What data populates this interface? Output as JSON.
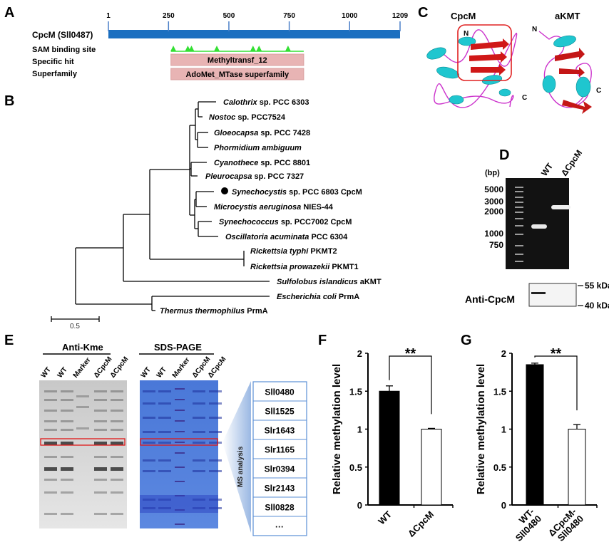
{
  "panel_labels": [
    "A",
    "B",
    "C",
    "D",
    "E",
    "F",
    "G"
  ],
  "panel_a": {
    "protein_label": "CpcM (Sll0487)",
    "ruler_ticks": [
      1,
      250,
      500,
      750,
      1000,
      1209
    ],
    "length": 1209,
    "rows": [
      "SAM binding site",
      "Specific hit",
      "Superfamily"
    ],
    "specific_hit": "Methyltransf_12",
    "superfamily": "AdoMet_MTase superfamily",
    "domain_range": [
      260,
      810
    ],
    "sam_sites": [
      270,
      330,
      345,
      450,
      600,
      625,
      745
    ],
    "colors": {
      "bar": "#1b6fc0",
      "domain": "#e8b4b4",
      "sam": "#33e033"
    }
  },
  "panel_b": {
    "leaves": [
      {
        "italic": "Calothrix",
        "rest": " sp. PCC 6303"
      },
      {
        "italic": "Nostoc",
        "rest": " sp. PCC7524"
      },
      {
        "italic": "Gloeocapsa",
        "rest": " sp. PCC 7428"
      },
      {
        "italic": "Phormidium ambiguum",
        "rest": ""
      },
      {
        "italic": "Cyanothece",
        "rest": " sp. PCC 8801"
      },
      {
        "italic": "Pleurocapsa",
        "rest": " sp. PCC 7327"
      },
      {
        "italic": "Synechocystis",
        "rest": " sp. PCC 6803 CpcM",
        "highlight": true
      },
      {
        "italic": "Microcystis aeruginosa",
        "rest": " NIES-44"
      },
      {
        "italic": "Synechococcus",
        "rest": " sp. PCC7002 CpcM"
      },
      {
        "italic": "Oscillatoria acuminata",
        "rest": " PCC 6304"
      },
      {
        "italic": "Rickettsia typhi",
        "rest": " PKMT2"
      },
      {
        "italic": "Rickettsia prowazekii",
        "rest": " PKMT1"
      },
      {
        "italic": "Sulfolobus islandicus",
        "rest": " aKMT"
      },
      {
        "italic": "Escherichia coli",
        "rest": " PrmA"
      },
      {
        "italic": "Thermus thermophilus",
        "rest": " PrmA"
      }
    ],
    "scale_label": "0.5"
  },
  "panel_c": {
    "titles": [
      "CpcM",
      "aKMT"
    ],
    "n_label": "N",
    "c_label": "C"
  },
  "panel_d": {
    "unit_label": "(bp)",
    "ladder": [
      "5000",
      "3000",
      "2000",
      "1000",
      "750"
    ],
    "lanes": [
      "WT",
      "ΔCpcM"
    ],
    "blot_label": "Anti-CpcM",
    "kda": [
      "55 kDa",
      "40 kDa"
    ]
  },
  "panel_e": {
    "blot_title": "Anti-Kme",
    "gel_title": "SDS-PAGE",
    "lanes": [
      "WT",
      "WT",
      "Marker",
      "ΔCpcM",
      "ΔCpcM"
    ],
    "ms_label": "MS analysis",
    "proteins": [
      "Sll0480",
      "Sll1525",
      "Slr1643",
      "Slr1165",
      "Slr0394",
      "Slr2143",
      "Sll0828",
      "···"
    ]
  },
  "chart_data": [
    {
      "type": "bar",
      "panel": "F",
      "categories": [
        "WT",
        "ΔCpcM"
      ],
      "values": [
        1.5,
        1.0
      ],
      "errors": [
        0.07,
        0.01
      ],
      "colors": [
        "#000000",
        "#ffffff"
      ],
      "ylabel": "Relative methylation level",
      "yticks": [
        "0",
        "0.5",
        "1",
        "1.5",
        "2"
      ],
      "ylim": [
        0,
        2
      ],
      "significance": "**"
    },
    {
      "type": "bar",
      "panel": "G",
      "categories": [
        "WT-\nSll0480",
        "ΔCpcM-\nSll0480"
      ],
      "category_lines": [
        [
          "WT-",
          "Sll0480"
        ],
        [
          "ΔCpcM-",
          "Sll0480"
        ]
      ],
      "values": [
        1.85,
        1.0
      ],
      "errors": [
        0.02,
        0.06
      ],
      "colors": [
        "#000000",
        "#ffffff"
      ],
      "ylabel": "Relative methylation level",
      "yticks": [
        "0",
        "0.5",
        "1",
        "1.5",
        "2"
      ],
      "ylim": [
        0,
        2
      ],
      "significance": "**"
    }
  ]
}
